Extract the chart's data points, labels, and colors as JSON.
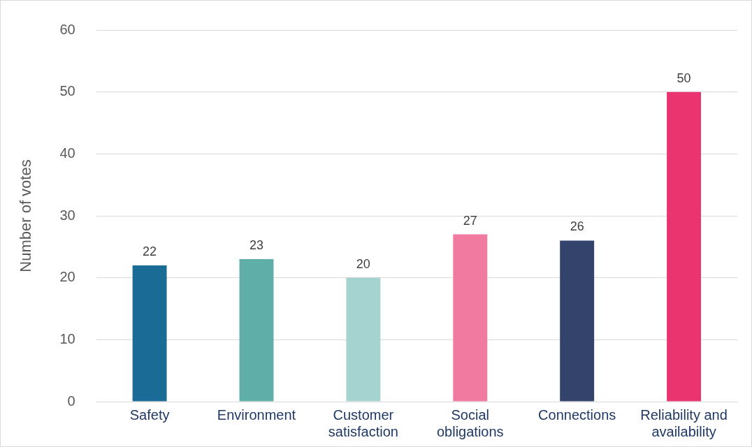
{
  "chart_data": {
    "type": "bar",
    "ylabel": "Number of votes",
    "categories": [
      "Safety",
      "Environment",
      "Customer satisfaction",
      "Social obligations",
      "Connections",
      "Reliability and availability"
    ],
    "values": [
      22,
      23,
      20,
      27,
      26,
      50
    ],
    "colors": [
      "#1a6b96",
      "#5fafa8",
      "#a5d3d0",
      "#f07aa0",
      "#34436b",
      "#e93470"
    ],
    "ylim": [
      0,
      60
    ],
    "yticks": [
      0,
      10,
      20,
      30,
      40,
      50,
      60
    ],
    "grid": "y",
    "data_labels": true,
    "legend": false
  }
}
